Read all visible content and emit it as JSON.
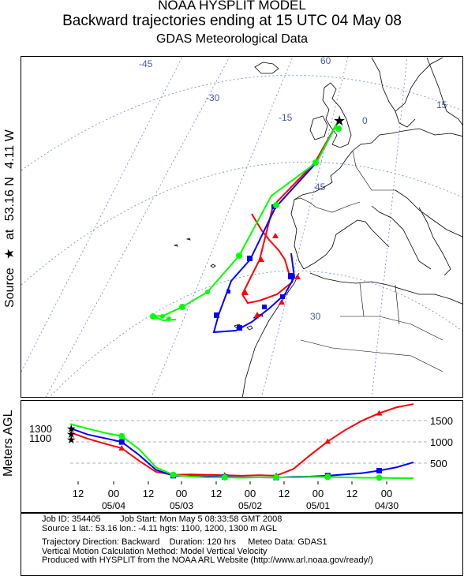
{
  "header": {
    "line1": "NOAA HYSPLIT MODEL",
    "line2": "Backward trajectories ending at 15 UTC 04 May 08",
    "line3": "GDAS Meteorological Data"
  },
  "source_label": {
    "prefix": "Source",
    "star": "★",
    "at": "at",
    "lat": "53.16 N",
    "lon": "4.11 W"
  },
  "map": {
    "graticule_labels": [
      "-45",
      "-30",
      "-15",
      "0",
      "15",
      "60",
      "45",
      "30"
    ],
    "colors": {
      "red": "#ff0000",
      "blue": "#0000ff",
      "green": "#00ff00",
      "grid": "#6b86c8",
      "coast": "#000000"
    }
  },
  "height_panel": {
    "ylabel": "Meters AGL",
    "right_ticks": [
      "1500",
      "1000",
      "500"
    ],
    "start_labels": [
      "1300",
      "1100"
    ],
    "time_labels": [
      "12",
      "00",
      "12",
      "00",
      "12",
      "00",
      "12",
      "00",
      "12",
      "00"
    ],
    "date_labels": [
      "05/04",
      "05/03",
      "05/02",
      "05/01",
      "04/30"
    ]
  },
  "chart_data": {
    "type": "line",
    "ylabel": "Meters AGL",
    "x": [
      0,
      6,
      12,
      18,
      24,
      30,
      36,
      42,
      48,
      54,
      60,
      66,
      72,
      78,
      84,
      90,
      96,
      102,
      108,
      114,
      120
    ],
    "series": [
      {
        "color": "#ff0000",
        "values": [
          1100,
          950,
          830,
          720,
          420,
          150,
          80,
          90,
          80,
          70,
          60,
          70,
          60,
          220,
          560,
          880,
          1150,
          1380,
          1560,
          1700,
          1780
        ]
      },
      {
        "color": "#0000ff",
        "values": [
          1200,
          1050,
          960,
          870,
          560,
          200,
          60,
          50,
          40,
          30,
          20,
          20,
          15,
          30,
          40,
          60,
          90,
          120,
          180,
          260,
          380
        ]
      },
      {
        "color": "#00ff00",
        "values": [
          1300,
          1190,
          1090,
          1010,
          700,
          260,
          80,
          40,
          20,
          20,
          10,
          20,
          20,
          20,
          30,
          30,
          20,
          10,
          10,
          0,
          0
        ]
      }
    ],
    "ylim": [
      0,
      1800
    ]
  },
  "info": {
    "job_id": "Job ID: 354405",
    "job_start": "Job Start: Mon May  5 08:33:58 GMT 2008",
    "source": "Source 1 lat.: 53.16   lon.: -4.11   hgts: 1100, 1200, 1300 m AGL",
    "direction": "Trajectory Direction: Backward",
    "duration": "Duration: 120 hrs",
    "meteo": "Meteo Data: GDAS1",
    "vertical": "Vertical Motion Calculation Method: Model Vertical Velocity",
    "produced": "Produced with HYSPLIT from the NOAA ARL Website (http://www.arl.noaa.gov/ready/)"
  }
}
